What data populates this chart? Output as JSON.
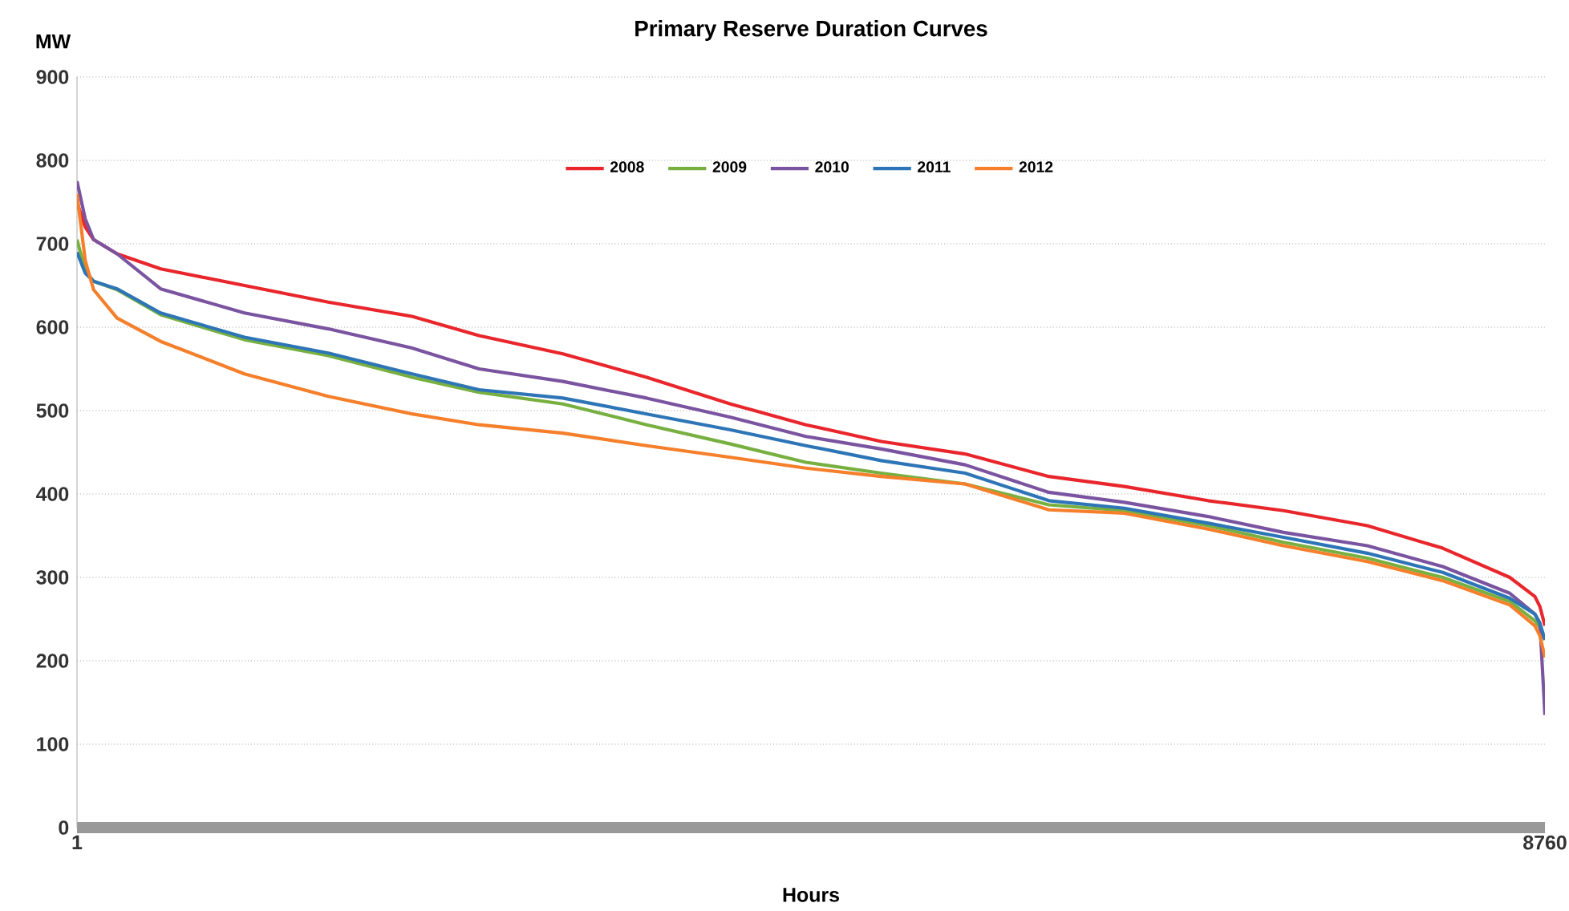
{
  "chart_data": {
    "type": "line",
    "title": "Primary Reserve Duration Curves",
    "xlabel": "Hours",
    "ylabel": "MW",
    "x": [
      1,
      50,
      100,
      240,
      500,
      1000,
      1500,
      2000,
      2400,
      2900,
      3400,
      3900,
      4350,
      4800,
      5300,
      5800,
      6250,
      6750,
      7200,
      7700,
      8150,
      8550,
      8700,
      8730,
      8760
    ],
    "series": [
      {
        "name": "2008",
        "color": "#e8262b",
        "values": [
          750,
          720,
          705,
          688,
          670,
          650,
          630,
          613,
          590,
          568,
          540,
          508,
          483,
          463,
          448,
          421,
          409,
          392,
          380,
          362,
          335,
          300,
          277,
          265,
          242
        ]
      },
      {
        "name": "2009",
        "color": "#77b041",
        "values": [
          705,
          668,
          655,
          645,
          615,
          585,
          566,
          540,
          522,
          508,
          483,
          460,
          438,
          425,
          412,
          387,
          380,
          362,
          342,
          323,
          300,
          271,
          248,
          240,
          225
        ]
      },
      {
        "name": "2010",
        "color": "#7a54a0",
        "values": [
          775,
          730,
          705,
          688,
          646,
          617,
          598,
          575,
          550,
          535,
          515,
          492,
          469,
          454,
          435,
          402,
          390,
          373,
          354,
          338,
          313,
          281,
          256,
          245,
          135
        ]
      },
      {
        "name": "2011",
        "color": "#2d75b6",
        "values": [
          690,
          665,
          655,
          646,
          617,
          588,
          569,
          544,
          525,
          515,
          496,
          477,
          458,
          440,
          425,
          392,
          383,
          365,
          348,
          329,
          306,
          275,
          256,
          245,
          225
        ]
      },
      {
        "name": "2012",
        "color": "#f57f2a",
        "values": [
          760,
          680,
          645,
          611,
          583,
          544,
          517,
          496,
          483,
          473,
          458,
          444,
          431,
          421,
          412,
          381,
          377,
          358,
          338,
          319,
          296,
          267,
          242,
          230,
          204
        ]
      }
    ],
    "xlim": [
      1,
      8760
    ],
    "xticks": [
      1,
      8760
    ],
    "ylim": [
      0,
      900
    ],
    "yticks": [
      0,
      100,
      200,
      300,
      400,
      500,
      600,
      700,
      800,
      900
    ],
    "grid": "y",
    "legend": "top",
    "marker": "none",
    "line_style": "solid"
  }
}
